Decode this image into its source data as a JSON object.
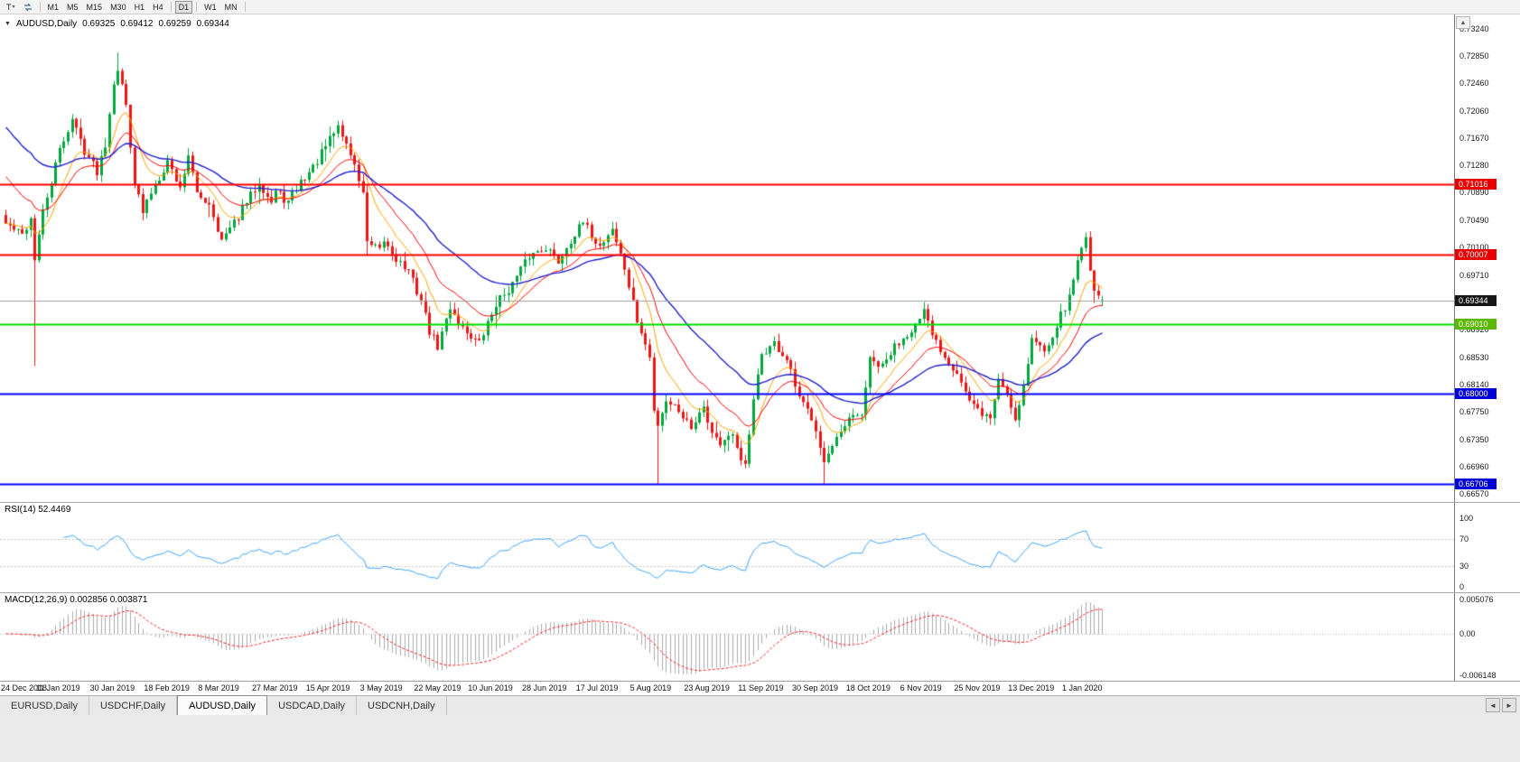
{
  "toolbar": {
    "template_button": {
      "label": "T",
      "caret": "▾"
    },
    "timeframes": [
      "M1",
      "M5",
      "M15",
      "M30",
      "H1",
      "H4",
      "D1",
      "W1",
      "MN"
    ],
    "active_timeframe": "D1"
  },
  "symbol_header": {
    "collapse_icon": "▼",
    "symbol": "AUDUSD,Daily",
    "open": "0.69325",
    "high": "0.69412",
    "low": "0.69259",
    "close": "0.69344"
  },
  "price_axis": {
    "ticks": [
      "0.73240",
      "0.72850",
      "0.72460",
      "0.72060",
      "0.71670",
      "0.71280",
      "0.70890",
      "0.70490",
      "0.70100",
      "0.69710",
      "0.69320",
      "0.68920",
      "0.68530",
      "0.68140",
      "0.67750",
      "0.67350",
      "0.66960",
      "0.66570"
    ],
    "scroll_up_icon": "▲"
  },
  "levels": [
    {
      "value": 0.71016,
      "label": "0.71016",
      "line_color": "#ff0000",
      "badge_color": "#e80000"
    },
    {
      "value": 0.70007,
      "label": "0.70007",
      "line_color": "#ff0000",
      "badge_color": "#e80000"
    },
    {
      "value": 0.6901,
      "label": "0.69010",
      "line_color": "#00dd00",
      "badge_color": "#5cb800"
    },
    {
      "value": 0.68,
      "label": "0.68000",
      "line_color": "#0000ff",
      "badge_color": "#0000d8"
    },
    {
      "value": 0.66706,
      "label": "0.66706",
      "line_color": "#0000ff",
      "badge_color": "#0000d8"
    }
  ],
  "bid": {
    "value": 0.69344,
    "label": "0.69344",
    "line_color": "#a0a0a0",
    "badge_color": "#161616"
  },
  "rsi_pane": {
    "label": "RSI(14) 52.4469",
    "period": 14,
    "line_color": "#3da5ff",
    "axis": [
      {
        "v": 100,
        "label": "100"
      },
      {
        "v": 70,
        "label": "70"
      },
      {
        "v": 30,
        "label": "30"
      },
      {
        "v": 0,
        "label": "0"
      }
    ]
  },
  "macd_pane": {
    "label": "MACD(12,26,9) 0.002856 0.003871",
    "fast": 12,
    "slow": 26,
    "signal": 9,
    "hist_color": "#ababab",
    "signal_color": "#ff2020",
    "axis": [
      {
        "v": 0.005076,
        "label": "0.005076"
      },
      {
        "v": 0,
        "label": "0.00"
      },
      {
        "v": -0.006148,
        "label": "-0.006148"
      }
    ]
  },
  "date_axis": [
    "24 Dec 2018",
    "11 Jan 2019",
    "30 Jan 2019",
    "18 Feb 2019",
    "8 Mar 2019",
    "27 Mar 2019",
    "15 Apr 2019",
    "3 May 2019",
    "22 May 2019",
    "10 Jun 2019",
    "28 Jun 2019",
    "17 Jul 2019",
    "5 Aug 2019",
    "23 Aug 2019",
    "11 Sep 2019",
    "30 Sep 2019",
    "18 Oct 2019",
    "6 Nov 2019",
    "25 Nov 2019",
    "13 Dec 2019",
    "1 Jan 2020"
  ],
  "tabs": {
    "items": [
      {
        "label": "EURUSD,Daily",
        "active": false
      },
      {
        "label": "USDCHF,Daily",
        "active": false
      },
      {
        "label": "AUDUSD,Daily",
        "active": true
      },
      {
        "label": "USDCAD,Daily",
        "active": false
      },
      {
        "label": "USDCNH,Daily",
        "active": false
      }
    ],
    "scroll_left_icon": "◄",
    "scroll_right_icon": "►"
  },
  "chart_data": {
    "type": "candlestick",
    "symbol": "AUDUSD",
    "timeframe": "Daily",
    "title": "AUDUSD,Daily",
    "ylim": [
      0.6645,
      0.7345
    ],
    "y_ticks": [
      0.7324,
      0.7285,
      0.7246,
      0.7206,
      0.7167,
      0.7128,
      0.7089,
      0.7049,
      0.701,
      0.6971,
      0.6932,
      0.6892,
      0.6853,
      0.6814,
      0.6775,
      0.6735,
      0.6696,
      0.6657
    ],
    "x_labels": [
      "24 Dec 2018",
      "11 Jan 2019",
      "30 Jan 2019",
      "18 Feb 2019",
      "8 Mar 2019",
      "27 Mar 2019",
      "15 Apr 2019",
      "3 May 2019",
      "22 May 2019",
      "10 Jun 2019",
      "28 Jun 2019",
      "17 Jul 2019",
      "5 Aug 2019",
      "23 Aug 2019",
      "11 Sep 2019",
      "30 Sep 2019",
      "18 Oct 2019",
      "6 Nov 2019",
      "25 Nov 2019",
      "13 Dec 2019",
      "1 Jan 2020"
    ],
    "bars_visible": 265,
    "bars_per_label": 13,
    "current_bar": {
      "open": 0.69325,
      "high": 0.69412,
      "low": 0.69259,
      "close": 0.69344
    },
    "horizontal_levels": [
      0.71016,
      0.70007,
      0.6901,
      0.68,
      0.66706
    ],
    "candle_colors": {
      "up": "#00a83d",
      "down": "#f01414"
    },
    "noise_seed": 42,
    "approx_close_path": [
      [
        0,
        0.7045
      ],
      [
        4,
        0.7028
      ],
      [
        6,
        0.7052
      ],
      [
        7,
        0.6995
      ],
      [
        9,
        0.706
      ],
      [
        13,
        0.715
      ],
      [
        16,
        0.7195
      ],
      [
        19,
        0.715
      ],
      [
        22,
        0.712
      ],
      [
        24,
        0.716
      ],
      [
        26,
        0.725
      ],
      [
        27,
        0.7268
      ],
      [
        29,
        0.7215
      ],
      [
        31,
        0.7105
      ],
      [
        33,
        0.706
      ],
      [
        35,
        0.709
      ],
      [
        39,
        0.7135
      ],
      [
        42,
        0.7095
      ],
      [
        44,
        0.7145
      ],
      [
        46,
        0.7085
      ],
      [
        49,
        0.7075
      ],
      [
        52,
        0.702
      ],
      [
        55,
        0.7045
      ],
      [
        58,
        0.7075
      ],
      [
        61,
        0.7105
      ],
      [
        64,
        0.7075
      ],
      [
        65,
        0.709
      ],
      [
        68,
        0.7075
      ],
      [
        71,
        0.7105
      ],
      [
        74,
        0.7125
      ],
      [
        78,
        0.7165
      ],
      [
        80,
        0.7185
      ],
      [
        83,
        0.7145
      ],
      [
        86,
        0.709
      ],
      [
        87,
        0.7015
      ],
      [
        90,
        0.7005
      ],
      [
        91,
        0.702
      ],
      [
        94,
        0.6995
      ],
      [
        97,
        0.6975
      ],
      [
        100,
        0.6935
      ],
      [
        102,
        0.689
      ],
      [
        104,
        0.6868
      ],
      [
        107,
        0.6925
      ],
      [
        110,
        0.6895
      ],
      [
        114,
        0.6872
      ],
      [
        118,
        0.693
      ],
      [
        122,
        0.6958
      ],
      [
        126,
        0.6998
      ],
      [
        130,
        0.7012
      ],
      [
        133,
        0.699
      ],
      [
        136,
        0.7022
      ],
      [
        139,
        0.7045
      ],
      [
        143,
        0.7012
      ],
      [
        146,
        0.7038
      ],
      [
        149,
        0.698
      ],
      [
        152,
        0.6905
      ],
      [
        155,
        0.6852
      ],
      [
        156,
        0.6775
      ],
      [
        157,
        0.6758
      ],
      [
        159,
        0.6792
      ],
      [
        162,
        0.6778
      ],
      [
        165,
        0.6752
      ],
      [
        168,
        0.6788
      ],
      [
        169,
        0.6758
      ],
      [
        172,
        0.6728
      ],
      [
        175,
        0.6738
      ],
      [
        178,
        0.6695
      ],
      [
        180,
        0.6788
      ],
      [
        182,
        0.6858
      ],
      [
        185,
        0.6872
      ],
      [
        188,
        0.6848
      ],
      [
        191,
        0.6792
      ],
      [
        194,
        0.6768
      ],
      [
        195,
        0.6752
      ],
      [
        197,
        0.6702
      ],
      [
        200,
        0.6732
      ],
      [
        203,
        0.6762
      ],
      [
        206,
        0.6772
      ],
      [
        208,
        0.6848
      ],
      [
        211,
        0.6838
      ],
      [
        214,
        0.6868
      ],
      [
        217,
        0.6888
      ],
      [
        220,
        0.6905
      ],
      [
        221,
        0.6916
      ],
      [
        223,
        0.6885
      ],
      [
        226,
        0.6855
      ],
      [
        229,
        0.6832
      ],
      [
        232,
        0.6788
      ],
      [
        234,
        0.6776
      ],
      [
        237,
        0.6765
      ],
      [
        239,
        0.6822
      ],
      [
        241,
        0.68
      ],
      [
        243,
        0.6765
      ],
      [
        245,
        0.6812
      ],
      [
        247,
        0.688
      ],
      [
        250,
        0.6862
      ],
      [
        253,
        0.69
      ],
      [
        256,
        0.6938
      ],
      [
        258,
        0.6992
      ],
      [
        259,
        0.7015
      ],
      [
        260,
        0.7021
      ],
      [
        261,
        0.6983
      ],
      [
        262,
        0.695
      ],
      [
        263,
        0.6945
      ],
      [
        264,
        0.69344
      ]
    ],
    "special_extremes": [
      {
        "i": 7,
        "low": 0.684
      },
      {
        "i": 27,
        "high": 0.729
      },
      {
        "i": 157,
        "low": 0.66706
      },
      {
        "i": 197,
        "low": 0.6671
      },
      {
        "i": 260,
        "high": 0.7032
      }
    ],
    "indicators": [
      {
        "name": "RSI",
        "period": 14,
        "current": 52.4469,
        "range": [
          0,
          100
        ],
        "levels": [
          70,
          30
        ]
      },
      {
        "name": "MACD",
        "fast": 12,
        "slow": 26,
        "signal": 9,
        "current": [
          0.002856,
          0.003871
        ],
        "axis_range": [
          -0.006148,
          0.005076
        ]
      },
      {
        "name": "MovingAverages",
        "type": "ema",
        "periods": [
          9,
          18,
          40
        ],
        "colors": [
          "#ffa500",
          "#ff0000",
          "#2222cc"
        ]
      }
    ]
  }
}
